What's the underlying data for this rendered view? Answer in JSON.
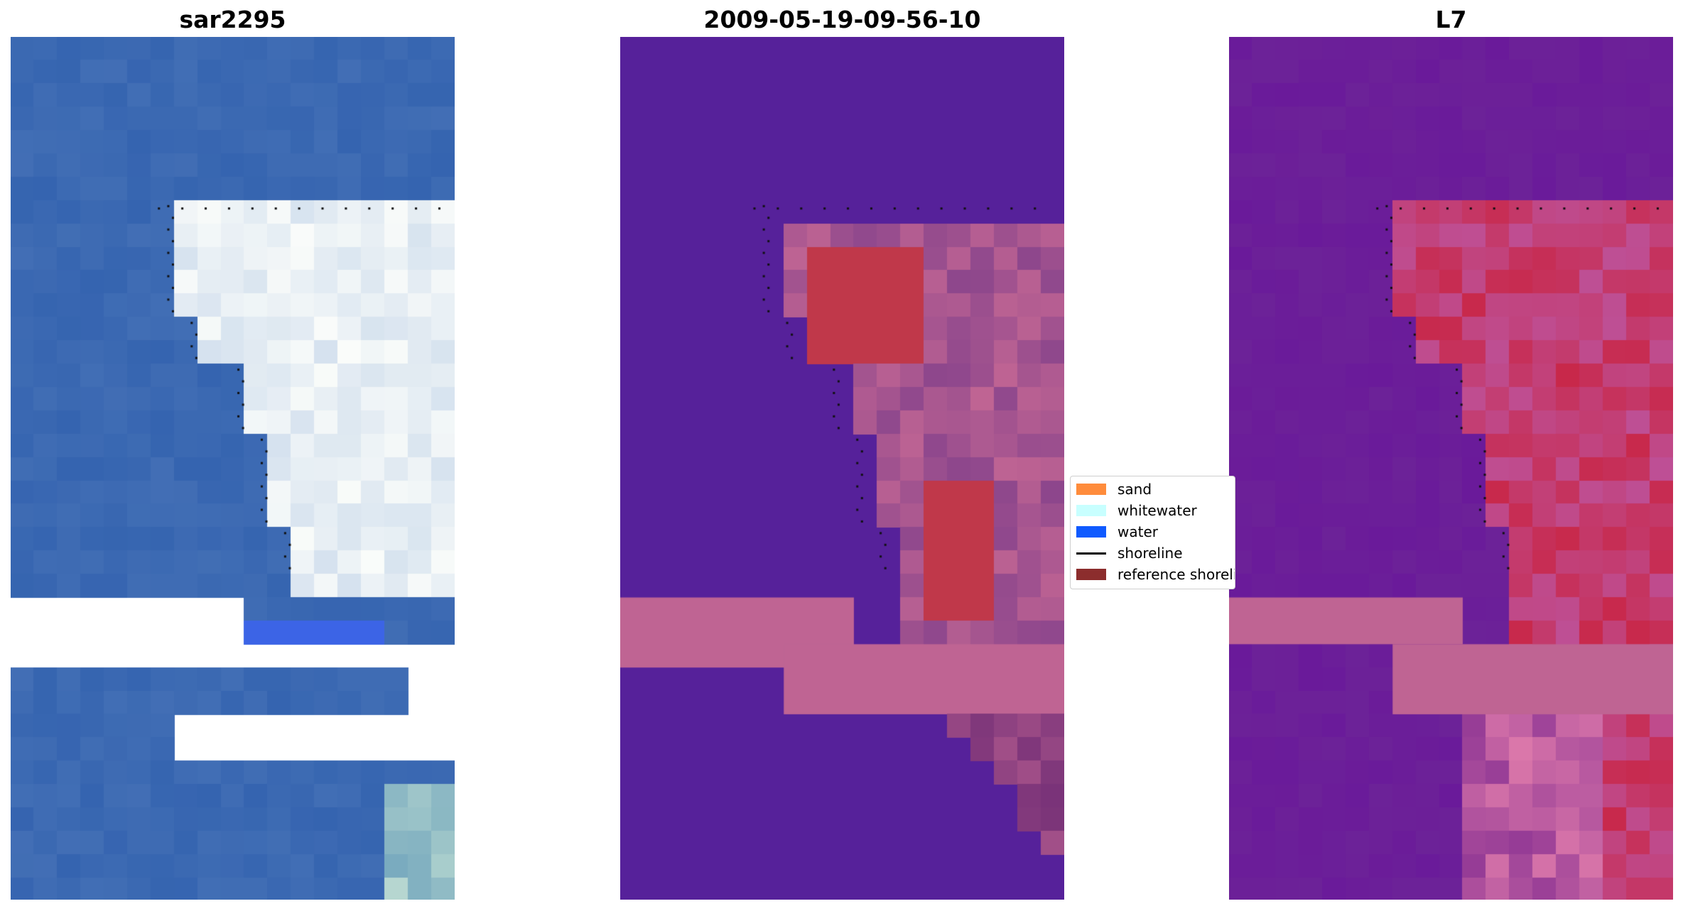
{
  "panels": [
    {
      "title": "sar2295",
      "kind": "rgb"
    },
    {
      "title": "2009-05-19-09-56-10",
      "kind": "classification"
    },
    {
      "title": "L7",
      "kind": "index"
    }
  ],
  "legend": {
    "items": [
      {
        "label": "sand",
        "type": "patch",
        "color": "#ff8c3c"
      },
      {
        "label": "whitewater",
        "type": "patch",
        "color": "#c8ffff"
      },
      {
        "label": "water",
        "type": "patch",
        "color": "#0f5aff"
      },
      {
        "label": "shoreline",
        "type": "line",
        "color": "#000000"
      },
      {
        "label": "reference shoreline",
        "type": "patch",
        "color": "#8c2d2d"
      }
    ]
  },
  "colors": {
    "water_blue": "#3564b0",
    "classified_background": "#56219a",
    "cloud_mask_pink": "#bf6493",
    "land_red": "#c0384a",
    "index_purple": "#6a1a9a",
    "index_red": "#c8284a"
  }
}
